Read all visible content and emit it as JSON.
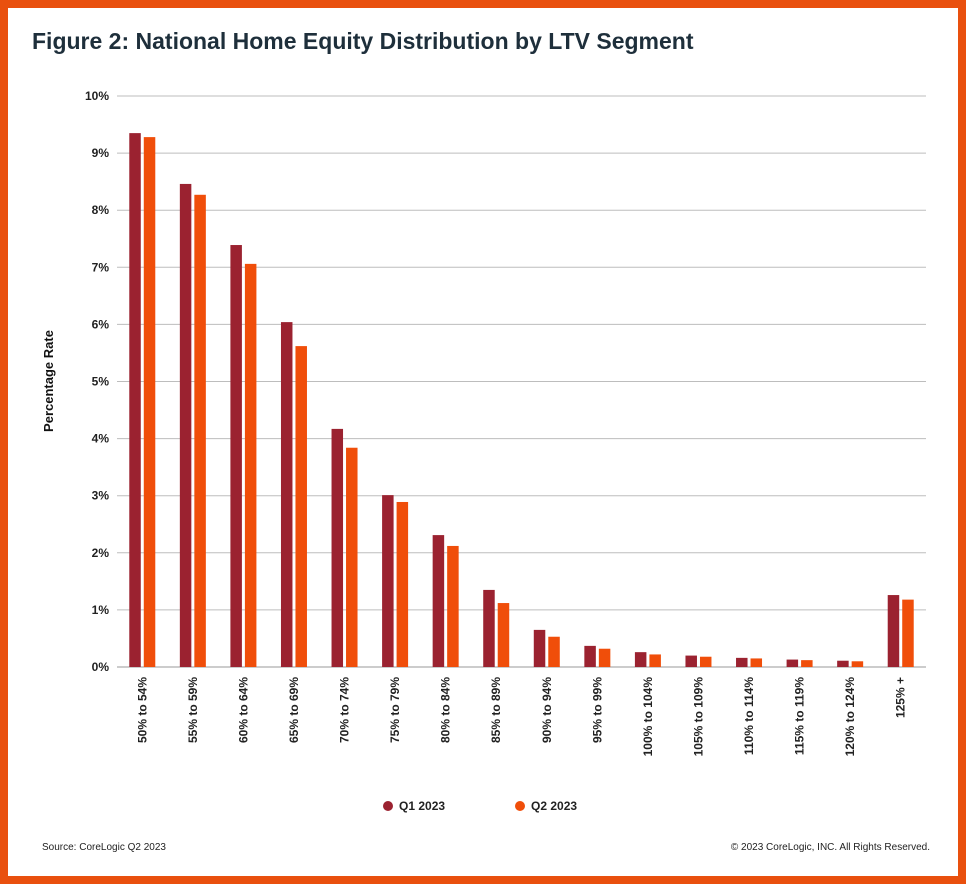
{
  "title": "Figure 2: National Home Equity Distribution by LTV Segment",
  "source": "Source: CoreLogic Q2 2023",
  "copyright": "© 2023 CoreLogic, INC. All Rights Reserved.",
  "colors": {
    "border": "#e9500e",
    "q1": "#9b2230",
    "q2": "#f04e0a"
  },
  "chart_data": {
    "type": "bar",
    "ylabel": "Percentage Rate",
    "xlabel": "",
    "ylim": [
      0,
      10
    ],
    "yticks": [
      "0%",
      "1%",
      "2%",
      "3%",
      "4%",
      "5%",
      "6%",
      "7%",
      "8%",
      "9%",
      "10%"
    ],
    "grid": true,
    "legend_position": "bottom",
    "categories": [
      "50% to 54%",
      "55% to 59%",
      "60% to 64%",
      "65% to 69%",
      "70% to 74%",
      "75% to 79%",
      "80% to 84%",
      "85% to 89%",
      "90% to 94%",
      "95% to 99%",
      "100% to 104%",
      "105% to 109%",
      "110% to 114%",
      "115% to 119%",
      "120% to 124%",
      "125% +"
    ],
    "series": [
      {
        "name": "Q1 2023",
        "color": "#9b2230",
        "values": [
          9.35,
          8.46,
          7.39,
          6.04,
          4.17,
          3.01,
          2.31,
          1.35,
          0.65,
          0.37,
          0.26,
          0.2,
          0.16,
          0.13,
          0.11,
          1.26
        ]
      },
      {
        "name": "Q2 2023",
        "color": "#f04e0a",
        "values": [
          9.28,
          8.27,
          7.06,
          5.62,
          3.84,
          2.89,
          2.12,
          1.12,
          0.53,
          0.32,
          0.22,
          0.18,
          0.15,
          0.12,
          0.1,
          1.18
        ]
      }
    ]
  }
}
